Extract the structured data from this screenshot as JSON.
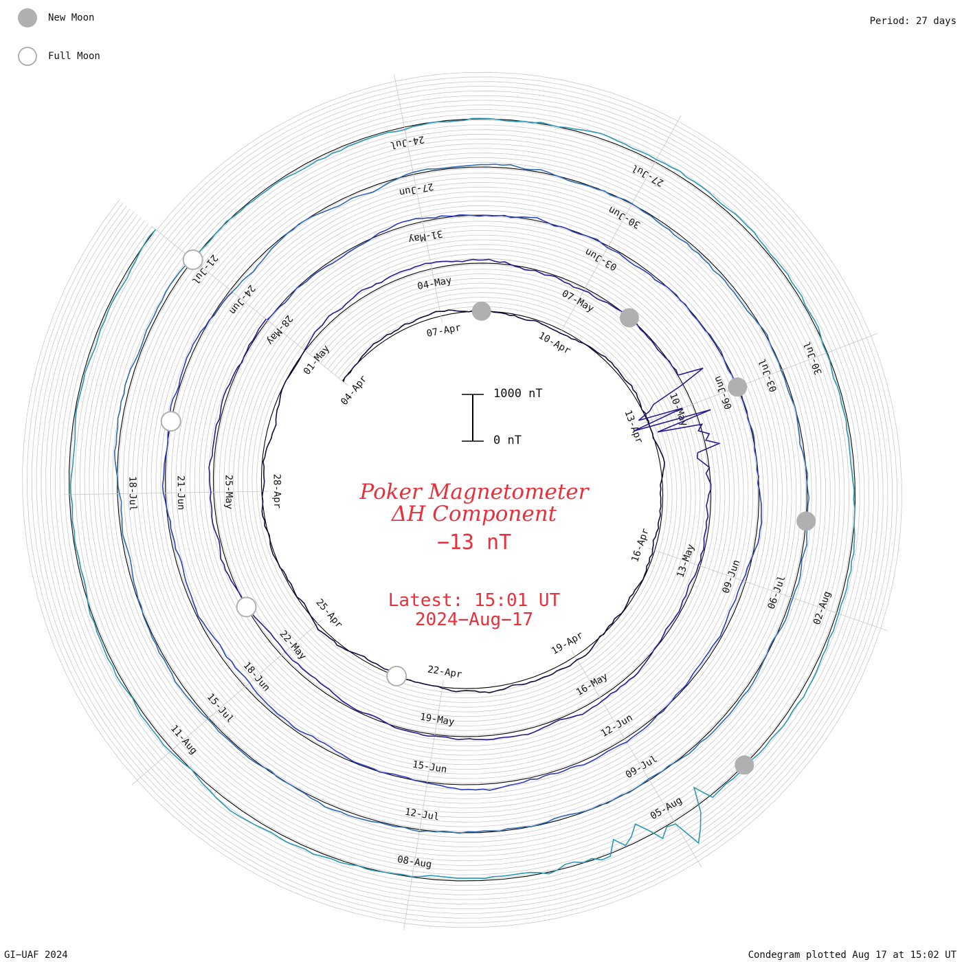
{
  "legend": {
    "new_moon_label": "New Moon",
    "full_moon_label": "Full Moon"
  },
  "period_label": "Period: 27 days",
  "title": {
    "line1": "Poker Magnetometer",
    "line2": "ΔH Component",
    "current_value": "−13 nT",
    "latest_line1": "Latest: 15:01 UT",
    "latest_line2": "2024−Aug−17"
  },
  "scale_bar": {
    "top_label": "1000 nT",
    "bottom_label": "0 nT"
  },
  "footer": {
    "left": "GI−UAF 2024",
    "right": "Condegram plotted Aug 17 at 15:02 UT"
  },
  "colors": {
    "title": "#e8303c",
    "grid": "#c8c8c8",
    "baseline": "#000000",
    "moon": "#b0b0b0"
  },
  "chart_data": {
    "type": "line",
    "description_type": "spiral condegram (polar time series, one turn per 27-day period)",
    "start_date": "2024-04-04",
    "end_date": "2024-08-17",
    "period_days": 27,
    "units": "nT",
    "scale_reference": [
      0,
      1000
    ],
    "date_labels": [
      "04-Apr",
      "07-Apr",
      "10-Apr",
      "13-Apr",
      "16-Apr",
      "19-Apr",
      "22-Apr",
      "25-Apr",
      "28-Apr",
      "01-May",
      "04-May",
      "07-May",
      "10-May",
      "13-May",
      "16-May",
      "19-May",
      "22-May",
      "25-May",
      "28-May",
      "31-May",
      "03-Jun",
      "06-Jun",
      "09-Jun",
      "12-Jun",
      "15-Jun",
      "18-Jun",
      "21-Jun",
      "24-Jun",
      "27-Jun",
      "30-Jun",
      "03-Jul",
      "06-Jul",
      "09-Jul",
      "12-Jul",
      "15-Jul",
      "18-Jul",
      "21-Jul",
      "24-Jul",
      "27-Jul",
      "30-Jul",
      "02-Aug",
      "05-Aug",
      "08-Aug",
      "11-Aug"
    ],
    "new_moons": [
      "2024-04-08",
      "2024-05-08",
      "2024-06-06",
      "2024-07-05",
      "2024-08-04"
    ],
    "full_moons": [
      "2024-04-23",
      "2024-05-23",
      "2024-06-22",
      "2024-07-21"
    ],
    "storms": [
      {
        "date": "2024-05-10",
        "peak_nT": 1800
      },
      {
        "date": "2024-08-05",
        "peak_nT": 900
      }
    ],
    "series_colors": [
      "#120a3a",
      "#2a1890",
      "#2a3cc0",
      "#2f6ab4",
      "#2a98b0",
      "#25b8a0",
      "#40c070",
      "#88c030",
      "#b8b020",
      "#c09020",
      "#c07015",
      "#c04810",
      "#b82010"
    ]
  }
}
